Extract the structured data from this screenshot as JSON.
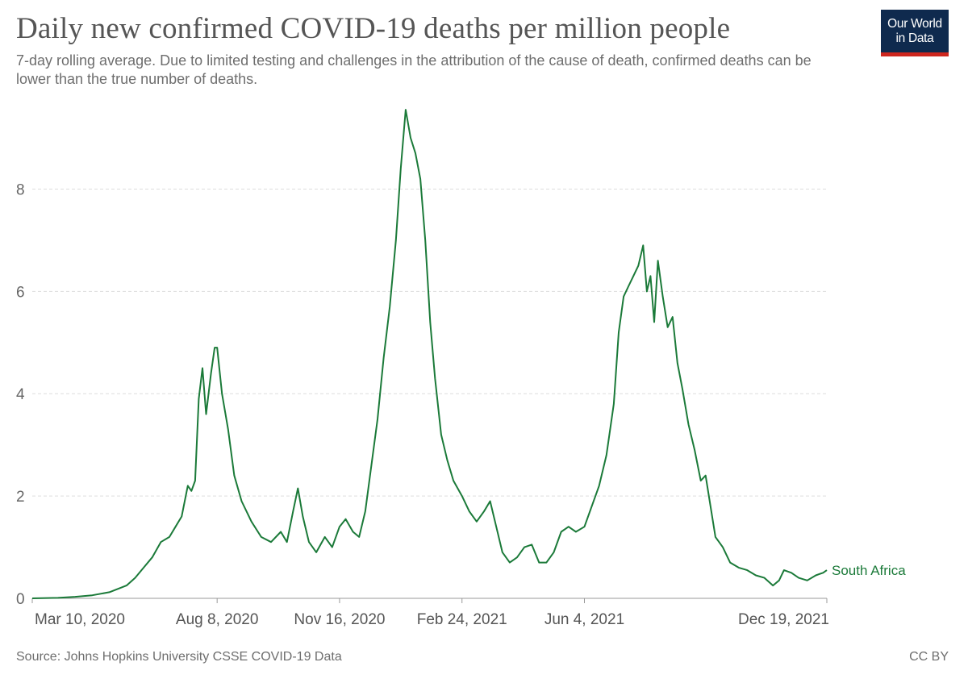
{
  "header": {
    "title": "Daily new confirmed COVID-19 deaths per million people",
    "subtitle": "7-day rolling average. Due to limited testing and challenges in the attribution of the cause of death, confirmed deaths can be lower than the true number of deaths.",
    "logo_line1": "Our World",
    "logo_line2": "in Data"
  },
  "footer": {
    "source": "Source: Johns Hopkins University CSSE COVID-19 Data",
    "license": "CC BY"
  },
  "colors": {
    "series": "#1b7a39",
    "grid": "#dddddd",
    "logo_bg": "#0f2a4e",
    "logo_bar": "#ce261e"
  },
  "chart_data": {
    "type": "line",
    "title": "Daily new confirmed COVID-19 deaths per million people",
    "subtitle": "7-day rolling average. Due to limited testing and challenges in the attribution of the cause of death, confirmed deaths can be lower than the true number of deaths.",
    "xlabel": "",
    "ylabel": "",
    "x_type": "date",
    "xlim": [
      "2020-03-10",
      "2021-12-19"
    ],
    "ylim": [
      0,
      9.6
    ],
    "yticks": [
      0,
      2,
      4,
      6,
      8
    ],
    "xticks": [
      {
        "date": "2020-03-10",
        "label": "Mar 10, 2020"
      },
      {
        "date": "2020-08-08",
        "label": "Aug 8, 2020"
      },
      {
        "date": "2020-11-16",
        "label": "Nov 16, 2020"
      },
      {
        "date": "2021-02-24",
        "label": "Feb 24, 2021"
      },
      {
        "date": "2021-06-04",
        "label": "Jun 4, 2021"
      },
      {
        "date": "2021-12-19",
        "label": "Dec 19, 2021"
      }
    ],
    "grid": "horizontal dashed",
    "legend": "label at line end",
    "series": [
      {
        "name": "South Africa",
        "color": "#1b7a39",
        "points": [
          [
            "2020-03-10",
            0
          ],
          [
            "2020-03-31",
            0.01
          ],
          [
            "2020-04-14",
            0.03
          ],
          [
            "2020-04-28",
            0.06
          ],
          [
            "2020-05-12",
            0.12
          ],
          [
            "2020-05-26",
            0.25
          ],
          [
            "2020-06-02",
            0.4
          ],
          [
            "2020-06-09",
            0.6
          ],
          [
            "2020-06-16",
            0.8
          ],
          [
            "2020-06-23",
            1.1
          ],
          [
            "2020-06-30",
            1.2
          ],
          [
            "2020-07-05",
            1.4
          ],
          [
            "2020-07-10",
            1.6
          ],
          [
            "2020-07-15",
            2.2
          ],
          [
            "2020-07-18",
            2.1
          ],
          [
            "2020-07-21",
            2.3
          ],
          [
            "2020-07-24",
            3.9
          ],
          [
            "2020-07-27",
            4.5
          ],
          [
            "2020-07-30",
            3.6
          ],
          [
            "2020-08-03",
            4.4
          ],
          [
            "2020-08-06",
            4.9
          ],
          [
            "2020-08-08",
            4.9
          ],
          [
            "2020-08-12",
            4.0
          ],
          [
            "2020-08-17",
            3.3
          ],
          [
            "2020-08-22",
            2.4
          ],
          [
            "2020-08-28",
            1.9
          ],
          [
            "2020-09-05",
            1.5
          ],
          [
            "2020-09-13",
            1.2
          ],
          [
            "2020-09-21",
            1.1
          ],
          [
            "2020-09-29",
            1.3
          ],
          [
            "2020-10-04",
            1.1
          ],
          [
            "2020-10-09",
            1.7
          ],
          [
            "2020-10-13",
            2.15
          ],
          [
            "2020-10-17",
            1.6
          ],
          [
            "2020-10-22",
            1.1
          ],
          [
            "2020-10-28",
            0.9
          ],
          [
            "2020-11-04",
            1.2
          ],
          [
            "2020-11-10",
            1.0
          ],
          [
            "2020-11-16",
            1.4
          ],
          [
            "2020-11-21",
            1.55
          ],
          [
            "2020-11-27",
            1.3
          ],
          [
            "2020-12-02",
            1.2
          ],
          [
            "2020-12-07",
            1.7
          ],
          [
            "2020-12-12",
            2.6
          ],
          [
            "2020-12-17",
            3.5
          ],
          [
            "2020-12-22",
            4.7
          ],
          [
            "2020-12-27",
            5.7
          ],
          [
            "2021-01-01",
            7.0
          ],
          [
            "2021-01-05",
            8.4
          ],
          [
            "2021-01-09",
            9.55
          ],
          [
            "2021-01-13",
            9.0
          ],
          [
            "2021-01-17",
            8.7
          ],
          [
            "2021-01-21",
            8.2
          ],
          [
            "2021-01-25",
            7.0
          ],
          [
            "2021-01-29",
            5.4
          ],
          [
            "2021-02-02",
            4.3
          ],
          [
            "2021-02-07",
            3.2
          ],
          [
            "2021-02-12",
            2.7
          ],
          [
            "2021-02-17",
            2.3
          ],
          [
            "2021-02-24",
            2.0
          ],
          [
            "2021-03-02",
            1.7
          ],
          [
            "2021-03-08",
            1.5
          ],
          [
            "2021-03-14",
            1.7
          ],
          [
            "2021-03-19",
            1.9
          ],
          [
            "2021-03-24",
            1.4
          ],
          [
            "2021-03-29",
            0.9
          ],
          [
            "2021-04-04",
            0.7
          ],
          [
            "2021-04-10",
            0.8
          ],
          [
            "2021-04-16",
            1.0
          ],
          [
            "2021-04-22",
            1.05
          ],
          [
            "2021-04-28",
            0.7
          ],
          [
            "2021-05-04",
            0.7
          ],
          [
            "2021-05-10",
            0.9
          ],
          [
            "2021-05-16",
            1.3
          ],
          [
            "2021-05-22",
            1.4
          ],
          [
            "2021-05-28",
            1.3
          ],
          [
            "2021-06-04",
            1.4
          ],
          [
            "2021-06-10",
            1.8
          ],
          [
            "2021-06-16",
            2.2
          ],
          [
            "2021-06-22",
            2.8
          ],
          [
            "2021-06-28",
            3.8
          ],
          [
            "2021-07-02",
            5.2
          ],
          [
            "2021-07-06",
            5.9
          ],
          [
            "2021-07-10",
            6.1
          ],
          [
            "2021-07-14",
            6.3
          ],
          [
            "2021-07-18",
            6.5
          ],
          [
            "2021-07-22",
            6.9
          ],
          [
            "2021-07-25",
            6.0
          ],
          [
            "2021-07-28",
            6.3
          ],
          [
            "2021-07-31",
            5.4
          ],
          [
            "2021-08-03",
            6.6
          ],
          [
            "2021-08-07",
            5.9
          ],
          [
            "2021-08-11",
            5.3
          ],
          [
            "2021-08-15",
            5.5
          ],
          [
            "2021-08-19",
            4.6
          ],
          [
            "2021-08-23",
            4.1
          ],
          [
            "2021-08-28",
            3.4
          ],
          [
            "2021-09-02",
            2.9
          ],
          [
            "2021-09-07",
            2.3
          ],
          [
            "2021-09-11",
            2.4
          ],
          [
            "2021-09-15",
            1.8
          ],
          [
            "2021-09-19",
            1.2
          ],
          [
            "2021-09-25",
            1.0
          ],
          [
            "2021-10-01",
            0.7
          ],
          [
            "2021-10-08",
            0.6
          ],
          [
            "2021-10-15",
            0.55
          ],
          [
            "2021-10-22",
            0.45
          ],
          [
            "2021-10-29",
            0.4
          ],
          [
            "2021-11-05",
            0.25
          ],
          [
            "2021-11-10",
            0.35
          ],
          [
            "2021-11-14",
            0.55
          ],
          [
            "2021-11-20",
            0.5
          ],
          [
            "2021-11-26",
            0.4
          ],
          [
            "2021-12-03",
            0.35
          ],
          [
            "2021-12-10",
            0.45
          ],
          [
            "2021-12-16",
            0.5
          ],
          [
            "2021-12-19",
            0.55
          ]
        ]
      }
    ]
  }
}
